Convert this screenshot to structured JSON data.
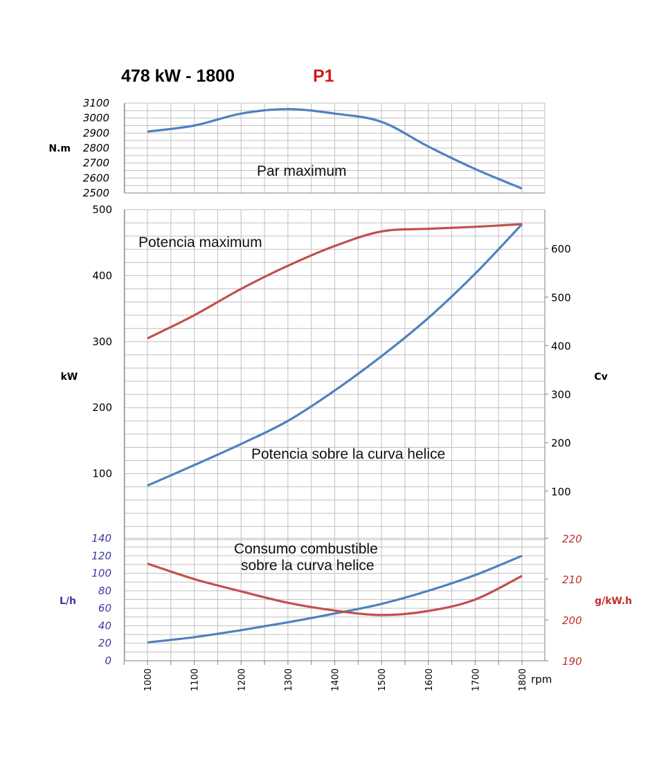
{
  "header": {
    "title": "478 kW - 1800",
    "code": "P1"
  },
  "colors": {
    "blue": "#4f81bd",
    "red": "#c0504d",
    "code": "#d01a1a",
    "grid": "#bfbfbf",
    "axis": "#7f7f7f",
    "tickBlue": "#3a3aa0",
    "tickRed": "#c0302a"
  },
  "chart_data": [
    {
      "type": "line",
      "ylabel": "N.m",
      "ylim": [
        2500,
        3100
      ],
      "yticks": [
        "3100",
        "3000",
        "2900",
        "2800",
        "2700",
        "2600",
        "2500"
      ],
      "grid": true,
      "annotations": [
        "Par maximum"
      ],
      "series": [
        {
          "color": "blue",
          "x": [
            1000,
            1100,
            1200,
            1300,
            1400,
            1500,
            1600,
            1700,
            1800
          ],
          "values": [
            2910,
            2950,
            3030,
            3060,
            3030,
            2975,
            2810,
            2660,
            2530
          ]
        }
      ]
    },
    {
      "type": "line",
      "ylabel": "kW",
      "ylim": [
        0,
        500
      ],
      "yticks": [
        "500",
        "400",
        "300",
        "200",
        "100"
      ],
      "y2label": "Cv",
      "y2lim": [
        0,
        680
      ],
      "y2ticks": [
        "600",
        "500",
        "400",
        "300",
        "200",
        "100"
      ],
      "grid": true,
      "annotations": [
        "Potencia maximum",
        "Potencia sobre la curva helice"
      ],
      "series": [
        {
          "color": "red",
          "x": [
            1000,
            1100,
            1200,
            1300,
            1400,
            1500,
            1600,
            1700,
            1800
          ],
          "values": [
            305,
            340,
            380,
            415,
            445,
            467,
            471,
            474,
            478
          ]
        },
        {
          "color": "blue",
          "x": [
            1000,
            1100,
            1200,
            1300,
            1400,
            1500,
            1600,
            1700,
            1800
          ],
          "values": [
            82,
            113,
            145,
            180,
            226,
            278,
            336,
            403,
            478
          ]
        }
      ]
    },
    {
      "type": "line",
      "ylabel": "L/h",
      "ylim": [
        0,
        140
      ],
      "yticks": [
        "140",
        "120",
        "100",
        "80",
        "60",
        "40",
        "20",
        "0"
      ],
      "y2label": "g/kW.h",
      "y2lim": [
        190,
        220
      ],
      "y2ticks": [
        "220",
        "210",
        "200",
        "190"
      ],
      "xlabel": "rpm",
      "categories": [
        "1000",
        "1100",
        "1200",
        "1300",
        "1400",
        "1500",
        "1600",
        "1700",
        "1800"
      ],
      "grid": true,
      "annotations": [
        "Consumo combustible",
        "sobre la curva helice"
      ],
      "series": [
        {
          "color": "blue",
          "axis": "left",
          "x": [
            1000,
            1100,
            1200,
            1300,
            1400,
            1500,
            1600,
            1700,
            1800
          ],
          "values": [
            21,
            27,
            35,
            44,
            54,
            65,
            80,
            98,
            120
          ]
        },
        {
          "color": "red",
          "axis": "right",
          "x": [
            1000,
            1100,
            1200,
            1300,
            1400,
            1500,
            1600,
            1700,
            1800
          ],
          "values": [
            213.8,
            210.0,
            207.0,
            204.2,
            202.3,
            201.2,
            202.2,
            205.0,
            210.8
          ]
        }
      ]
    }
  ]
}
